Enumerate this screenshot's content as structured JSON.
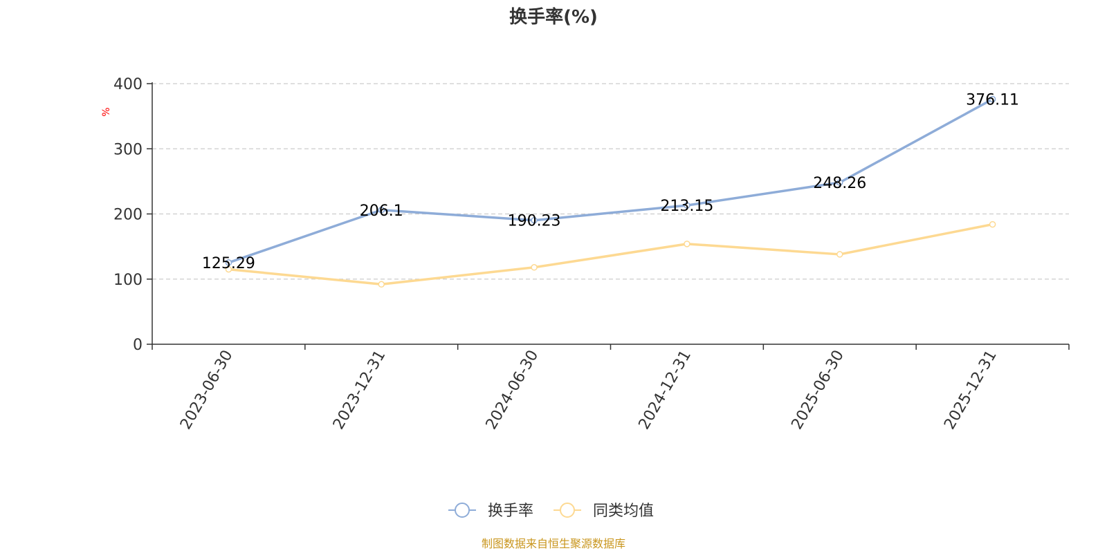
{
  "chart_data": {
    "type": "line",
    "title": "换手率(%)",
    "ylabel": "%",
    "xlabel": "",
    "ylim": [
      0,
      400
    ],
    "yticks": [
      0,
      100,
      200,
      300,
      400
    ],
    "grid": true,
    "categories": [
      "2023-06-30",
      "2023-12-31",
      "2024-06-30",
      "2024-12-31",
      "2025-06-30",
      "2025-12-31"
    ],
    "series": [
      {
        "name": "换手率",
        "color": "#8eacd8",
        "values": [
          125.29,
          206.1,
          190.23,
          213.15,
          248.26,
          376.11
        ],
        "labels": [
          "125.29",
          "206.1",
          "190.23",
          "213.15",
          "248.26",
          "376.11"
        ],
        "show_labels": true
      },
      {
        "name": "同类均值",
        "color": "#fdd992",
        "values": [
          115,
          92,
          118,
          154,
          138,
          184
        ],
        "show_labels": false
      }
    ],
    "legend_position": "bottom-center"
  },
  "footer": {
    "source": "制图数据来自恒生聚源数据库"
  }
}
